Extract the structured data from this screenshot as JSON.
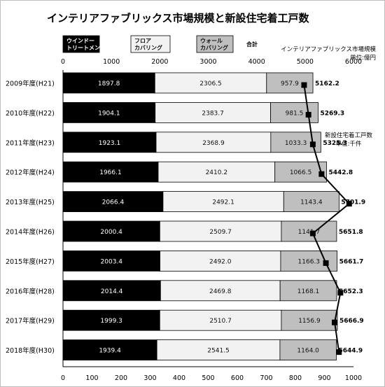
{
  "chart_data": {
    "type": "bar",
    "stacked": true,
    "orientation": "horizontal",
    "title": "インテリアファブリックス市場規模と新設住宅着工戸数",
    "categories": [
      "2009年度(H21)",
      "2010年度(H22)",
      "2011年度(H23)",
      "2012年度(H24)",
      "2013年度(H25)",
      "2014年度(H26)",
      "2015年度(H27)",
      "2016年度(H28)",
      "2017年度(H29)",
      "2018年度(H30)"
    ],
    "series": [
      {
        "name": [
          "ウインドー",
          "トリートメント"
        ],
        "color": "#000000",
        "text_color": "#ffffff",
        "values": [
          1897.8,
          1904.1,
          1923.1,
          1966.1,
          2066.4,
          2000.4,
          2003.4,
          2014.4,
          1999.3,
          1939.4
        ]
      },
      {
        "name": [
          "フロア",
          "カバリング"
        ],
        "color": "#f2f2f2",
        "text_color": "#111111",
        "values": [
          2306.5,
          2383.7,
          2368.9,
          2410.2,
          2492.1,
          2509.7,
          2492.0,
          2469.8,
          2510.7,
          2541.5
        ]
      },
      {
        "name": [
          "ウォール",
          "カバリング"
        ],
        "color": "#bfbfbf",
        "text_color": "#111111",
        "values": [
          957.9,
          981.5,
          1033.3,
          1066.5,
          1143.4,
          1141.7,
          1166.3,
          1168.1,
          1156.9,
          1164.0
        ]
      }
    ],
    "totals_label": "合計",
    "totals": [
      "5162.2",
      "5269.3",
      "5325.3",
      "5442.8",
      "5701.9",
      "5651.8",
      "5661.7",
      "5652.3",
      "5666.9",
      "5644.9"
    ],
    "series_labels": [
      [
        "1897.8",
        "1904.1",
        "1923.1",
        "1966.1",
        "2066.4",
        "2000.4",
        "2003.4",
        "2014.4",
        "1999.3",
        "1939.4"
      ],
      [
        "2306.5",
        "2383.7",
        "2368.9",
        "2410.2",
        "2492.1",
        "2509.7",
        "2492.0",
        "2469.8",
        "2510.7",
        "2541.5"
      ],
      [
        "957.9",
        "981.5",
        "1033.3",
        "1066.5",
        "1143.4",
        "1141.7",
        "1166.3",
        "1168.1",
        "1156.9",
        "1164.0"
      ]
    ],
    "top_axis": {
      "label": "インテリアファブリックス市場規模",
      "unit": "単位:億円",
      "range": [
        0,
        6000
      ],
      "ticks": [
        "0",
        "1000",
        "2000",
        "3000",
        "4000",
        "5000",
        "6000"
      ]
    },
    "bottom_axis": {
      "range": [
        0,
        1000
      ],
      "ticks": [
        "0",
        "100",
        "200",
        "300",
        "400",
        "500",
        "600",
        "700",
        "800",
        "900",
        "1000"
      ]
    },
    "line_series": {
      "name": "新設住宅着工戸数",
      "unit": "単位:千件",
      "color": "#000000",
      "values": [
        830,
        845,
        860,
        890,
        985,
        860,
        905,
        955,
        935,
        950
      ]
    },
    "grid": false
  }
}
